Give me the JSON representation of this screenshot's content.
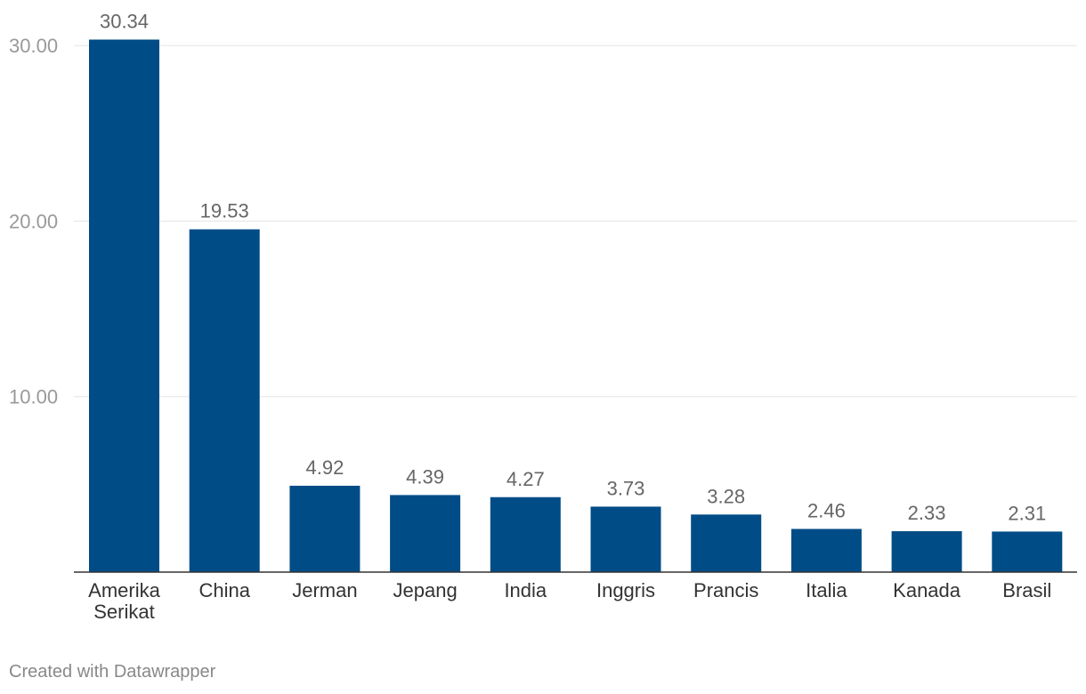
{
  "chart_data": {
    "type": "bar",
    "categories": [
      [
        "Amerika",
        "Serikat"
      ],
      [
        "China"
      ],
      [
        "Jerman"
      ],
      [
        "Jepang"
      ],
      [
        "India"
      ],
      [
        "Inggris"
      ],
      [
        "Prancis"
      ],
      [
        "Italia"
      ],
      [
        "Kanada"
      ],
      [
        "Brasil"
      ]
    ],
    "values": [
      30.34,
      19.53,
      4.92,
      4.39,
      4.27,
      3.73,
      3.28,
      2.46,
      2.33,
      2.31
    ],
    "value_labels": [
      "30.34",
      "19.53",
      "4.92",
      "4.39",
      "4.27",
      "3.73",
      "3.28",
      "2.46",
      "2.33",
      "2.31"
    ],
    "y_ticks": [
      10,
      20,
      30
    ],
    "y_tick_labels": [
      "10.00",
      "20.00",
      "30.00"
    ],
    "ylim": [
      0,
      30.34
    ],
    "grid": true,
    "title": "",
    "xlabel": "",
    "ylabel": "",
    "bar_color": "#004c87"
  },
  "footer": {
    "credit": "Created with Datawrapper"
  }
}
